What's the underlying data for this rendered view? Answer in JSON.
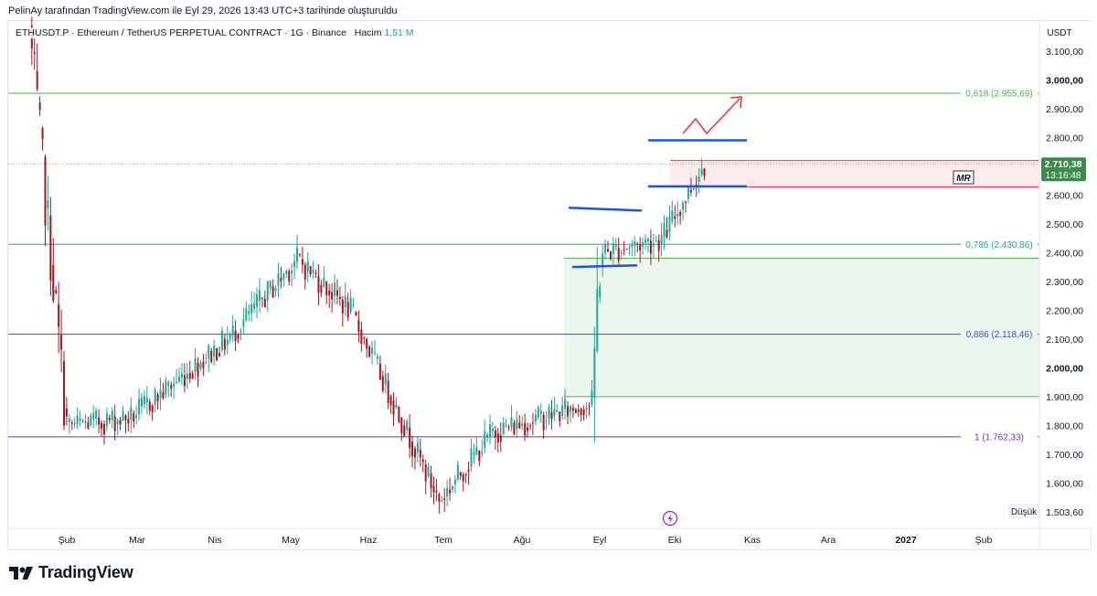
{
  "caption": "PelinAy tarafından TradingView.com ile Eyl 29, 2026 13:43 UTC+3 tarihinde oluşturuldu",
  "header": {
    "symbol_line": "ETHUSDT.P · Ethereum / TetherUS PERPETUAL CONTRACT · 1G · Binance",
    "volume_label": "Hacim",
    "volume_value": "1,51 M"
  },
  "price_axis": {
    "currency": "USDT",
    "ticks": [
      "3.100,00",
      "3.000,00",
      "2.900,00",
      "2.800,00",
      "2.700,00",
      "2.600,00",
      "2.500,00",
      "2.400,00",
      "2.300,00",
      "2.200,00",
      "2.100,00",
      "2.000,00",
      "1.900,00",
      "1.800,00",
      "1.700,00",
      "1.600,00"
    ],
    "tick_values": [
      3100,
      3000,
      2900,
      2800,
      2700,
      2600,
      2500,
      2400,
      2300,
      2200,
      2100,
      2000,
      1900,
      1800,
      1700,
      1600
    ],
    "last_price": "2.710,38",
    "countdown": "13:16:48",
    "low_label": "Düşük",
    "low_value": "1.503,60"
  },
  "time_axis": {
    "labels": [
      "Şub",
      "Mar",
      "Nis",
      "May",
      "Haz",
      "Tem",
      "Ağu",
      "Eyl",
      "Eki",
      "Kas",
      "Ara",
      "2027",
      "Şub"
    ],
    "bold": [
      "2027"
    ]
  },
  "fib_levels": [
    {
      "label": "0,618 (2.955,69)",
      "value": 2955.69,
      "color": "#4caf50"
    },
    {
      "label": "0,786 (2.430,86)",
      "value": 2430.86,
      "color": "#26a69a"
    },
    {
      "label": "0,886 (2.118,46)",
      "value": 2118.46,
      "color": "#3f51b5"
    },
    {
      "label": "1 (1.762,33)",
      "value": 1762.33,
      "color": "#673ab7"
    }
  ],
  "annotations": {
    "mr_label": "MR",
    "red_zone": {
      "top": 2722,
      "bottom": 2630
    },
    "green_zone": {
      "top": 2383,
      "bottom": 1902
    },
    "upper_channel": {
      "top": 2792,
      "bottom": 2632
    },
    "flag_top": [
      2558,
      2548
    ],
    "flag_bottom": [
      2352,
      2358
    ]
  },
  "chart_data": {
    "type": "candlestick",
    "symbol": "ETHUSDT.P",
    "interval": "1G",
    "y_range": [
      1500,
      3150
    ],
    "last_price": 2710.38,
    "period_low": 1503.6,
    "segments": [
      {
        "from": "Jan 20",
        "to": "Feb 3",
        "start": 3190,
        "end": 1800
      },
      {
        "from": "Feb 3",
        "to": "Feb 27",
        "start": 1800,
        "end": 1830
      },
      {
        "from": "Feb 27",
        "to": "Apr 4",
        "start": 1830,
        "end": 2100
      },
      {
        "from": "Apr 4",
        "to": "Apr 30",
        "start": 2100,
        "end": 2380
      },
      {
        "from": "Apr 30",
        "to": "May 20",
        "start": 2380,
        "end": 2200
      },
      {
        "from": "May 20",
        "to": "Jun 22",
        "start": 2200,
        "end": 1540
      },
      {
        "from": "Jun 22",
        "to": "Jul 12",
        "start": 1540,
        "end": 1780
      },
      {
        "from": "Jul 12",
        "to": "Aug 18",
        "start": 1780,
        "end": 1880
      },
      {
        "from": "Aug 18",
        "to": "Aug 21",
        "start": 1880,
        "end": 2400
      },
      {
        "from": "Aug 21",
        "to": "Sep 13",
        "start": 2400,
        "end": 2450
      },
      {
        "from": "Sep 13",
        "to": "Sep 29",
        "start": 2450,
        "end": 2710
      }
    ]
  },
  "colors": {
    "up": "#26a69a",
    "down": "#a0181f",
    "blue_line": "#1e53e5",
    "red_arrow": "#f23645",
    "price_tag": "#3a8c4a"
  }
}
